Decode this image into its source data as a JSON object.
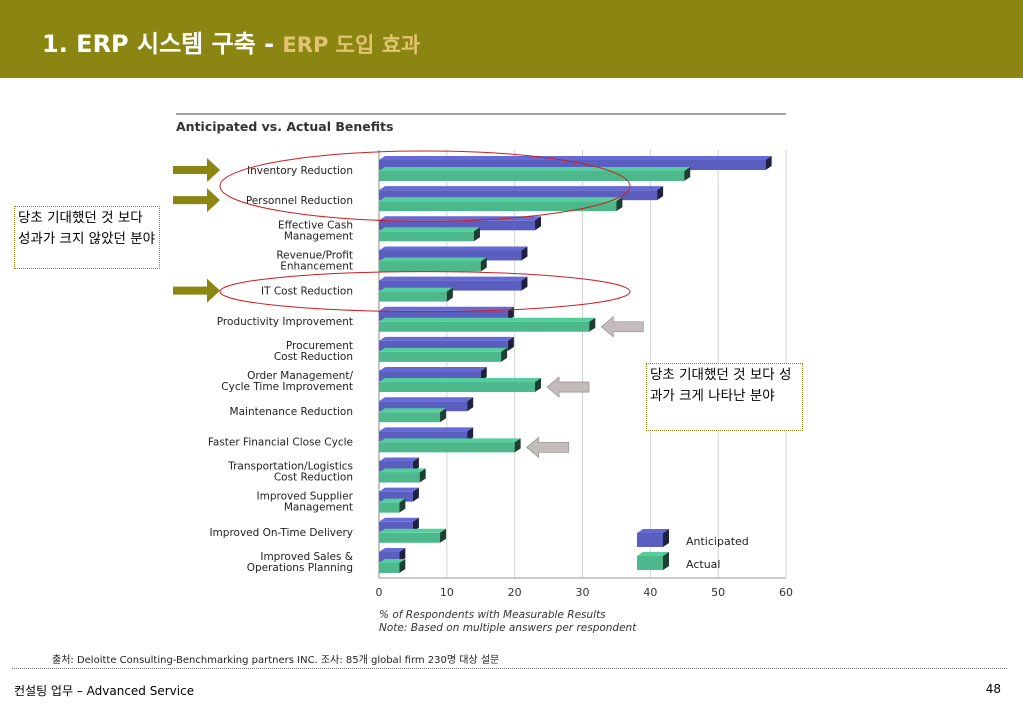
{
  "slide": {
    "title_main": "1. ERP 시스템 구축 - ",
    "title_sub": "ERP 도입 효과",
    "note_left": "당초 기대했던 것 보다 성과가 크지 않았던 분야",
    "note_right": "당초 기대했던 것 보다 성과가 크게 나타난 분야",
    "source": "출처: Deloitte Consulting-Benchmarking partners INC. 조사: 85개 global firm 230명 대상 설문",
    "footer_text": "컨설팅 업무 – Advanced Service",
    "page_number": "48"
  },
  "colors": {
    "title_bar": "#8a8611",
    "anticipated": "#5a5fbf",
    "actual": "#4cb88c",
    "pointer_arrow": "#8a8611",
    "highlight_ellipse": "#cc1f1f",
    "gray_arrow": "#c4bcbc"
  },
  "chart_data": {
    "type": "bar",
    "orientation": "horizontal",
    "title": "Anticipated vs. Actual Benefits",
    "categories": [
      "Inventory Reduction",
      "Personnel Reduction",
      "Effective Cash Management",
      "Revenue/Profit Enhancement",
      "IT Cost Reduction",
      "Productivity Improvement",
      "Procurement Cost Reduction",
      "Order Management/ Cycle Time Improvement",
      "Maintenance Reduction",
      "Faster Financial Close Cycle",
      "Transportation/Logistics Cost Reduction",
      "Improved Supplier Management",
      "Improved On-Time Delivery",
      "Improved Sales & Operations Planning"
    ],
    "category_lines": [
      [
        "Inventory Reduction"
      ],
      [
        "Personnel Reduction"
      ],
      [
        "Effective Cash",
        "Management"
      ],
      [
        "Revenue/Profit",
        "Enhancement"
      ],
      [
        "IT Cost Reduction"
      ],
      [
        "Productivity Improvement"
      ],
      [
        "Procurement",
        "Cost Reduction"
      ],
      [
        "Order Management/",
        "Cycle Time Improvement"
      ],
      [
        "Maintenance Reduction"
      ],
      [
        "Faster Financial Close Cycle"
      ],
      [
        "Transportation/Logistics",
        "Cost Reduction"
      ],
      [
        "Improved Supplier",
        "Management"
      ],
      [
        "Improved On-Time Delivery"
      ],
      [
        "Improved Sales &",
        "Operations Planning"
      ]
    ],
    "series": [
      {
        "name": "Anticipated",
        "values": [
          57,
          41,
          23,
          21,
          21,
          19,
          19,
          15,
          13,
          13,
          5,
          5,
          5,
          3
        ]
      },
      {
        "name": "Actual",
        "values": [
          45,
          35,
          14,
          15,
          10,
          31,
          18,
          23,
          9,
          20,
          6,
          3,
          9,
          3
        ]
      }
    ],
    "xlim": [
      0,
      60
    ],
    "xticks": [
      0,
      10,
      20,
      30,
      40,
      50,
      60
    ],
    "xlabel_lines": [
      "% of Respondents with Measurable Results",
      "Note: Based on multiple answers per respondent"
    ],
    "legend_position": "bottom-right",
    "grid": true,
    "pointer_arrows": [
      "Inventory Reduction",
      "Personnel Reduction",
      "IT Cost Reduction"
    ],
    "highlight_ellipses": [
      [
        "Inventory Reduction",
        "Personnel Reduction"
      ],
      [
        "IT Cost Reduction"
      ]
    ],
    "gray_arrows": [
      "Productivity Improvement",
      "Order Management/ Cycle Time Improvement",
      "Faster Financial Close Cycle"
    ]
  }
}
